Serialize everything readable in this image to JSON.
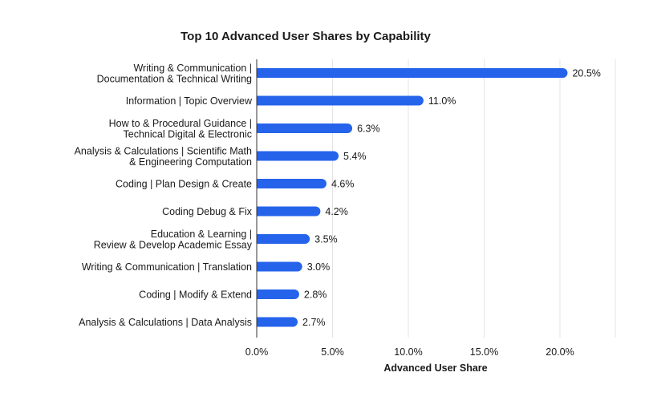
{
  "chart_data": {
    "type": "bar",
    "orientation": "horizontal",
    "title": "Top 10 Advanced User Shares by Capability",
    "xlabel": "Advanced User Share",
    "ylabel": "",
    "xlim": [
      0,
      24
    ],
    "xticks": [
      0,
      5,
      10,
      15,
      20
    ],
    "xtick_labels": [
      "0.0%",
      "5.0%",
      "10.0%",
      "15.0%",
      "20.0%"
    ],
    "grid": "vertical",
    "bar_color": "#2563eb",
    "categories": [
      [
        "Writing & Communication |",
        "Documentation & Technical Writing"
      ],
      [
        "Information | Topic Overview"
      ],
      [
        "How to & Procedural Guidance |",
        "Technical Digital & Electronic"
      ],
      [
        "Analysis & Calculations | Scientific Math",
        "& Engineering Computation"
      ],
      [
        "Coding | Plan Design & Create"
      ],
      [
        "Coding Debug & Fix"
      ],
      [
        "Education & Learning |",
        "Review & Develop Academic Essay"
      ],
      [
        "Writing & Communication | Translation"
      ],
      [
        "Coding | Modify & Extend"
      ],
      [
        "Analysis & Calculations | Data Analysis"
      ]
    ],
    "values": [
      20.5,
      11.0,
      6.3,
      5.4,
      4.6,
      4.2,
      3.5,
      3.0,
      2.8,
      2.7
    ],
    "value_labels": [
      "20.5%",
      "11.0%",
      "6.3%",
      "5.4%",
      "4.6%",
      "4.2%",
      "3.5%",
      "3.0%",
      "2.8%",
      "2.7%"
    ]
  }
}
